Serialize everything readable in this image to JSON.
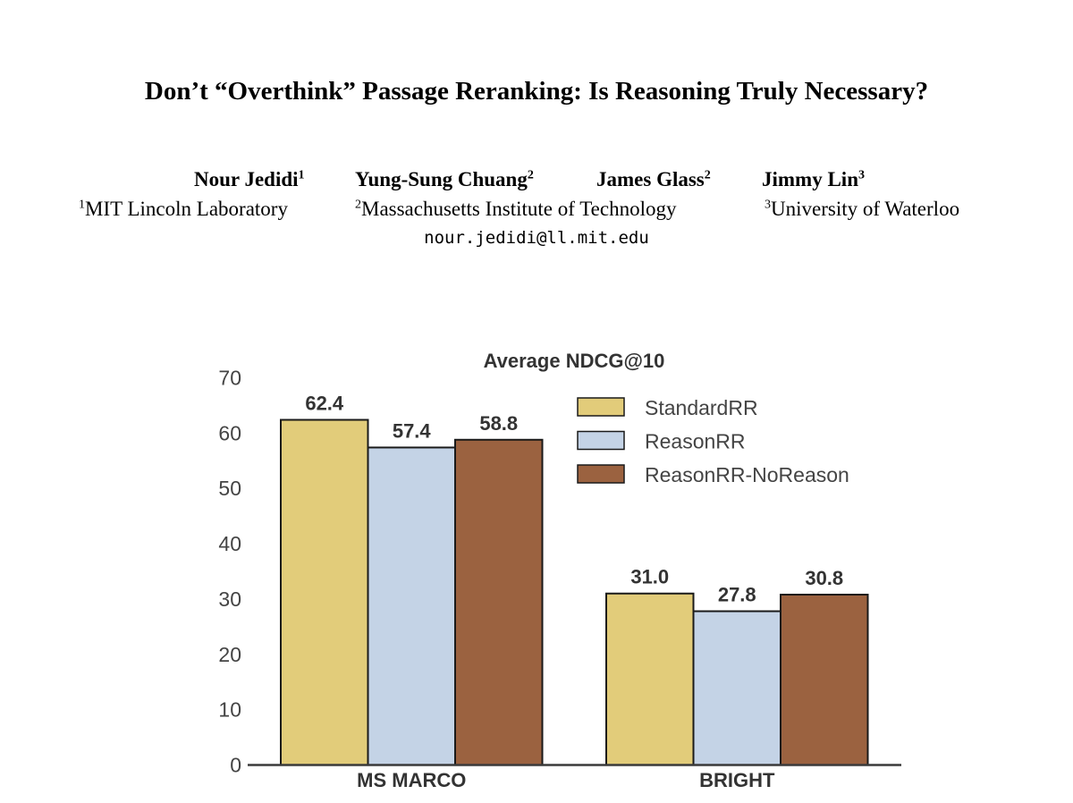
{
  "paper": {
    "title": "Don’t “Overthink” Passage Reranking: Is Reasoning Truly Necessary?",
    "authors": [
      {
        "name": "Nour Jedidi",
        "sup": "1"
      },
      {
        "name": "Yung-Sung Chuang",
        "sup": "2"
      },
      {
        "name": "James Glass",
        "sup": "2"
      },
      {
        "name": "Jimmy Lin",
        "sup": "3"
      }
    ],
    "affiliations": [
      {
        "sup": "1",
        "name": "MIT Lincoln Laboratory"
      },
      {
        "sup": "2",
        "name": "Massachusetts Institute of Technology"
      },
      {
        "sup": "3",
        "name": "University of Waterloo"
      }
    ],
    "email": "nour.jedidi@ll.mit.edu"
  },
  "colors": {
    "StandardRR": "#e2cc7a",
    "ReasonRR": "#c4d3e6",
    "ReasonRR-NoReason": "#9b6240",
    "axis": "#3a3a3a",
    "text": "#333333"
  },
  "chart_data": {
    "type": "bar",
    "title": "Average NDCG@10",
    "categories": [
      "MS MARCO",
      "BRIGHT"
    ],
    "series": [
      {
        "name": "StandardRR",
        "values": [
          62.4,
          31.0
        ],
        "labels": [
          "62.4",
          "31.0"
        ]
      },
      {
        "name": "ReasonRR",
        "values": [
          57.4,
          27.8
        ],
        "labels": [
          "57.4",
          "27.8"
        ]
      },
      {
        "name": "ReasonRR-NoReason",
        "values": [
          58.8,
          30.8
        ],
        "labels": [
          "58.8",
          "30.8"
        ]
      }
    ],
    "yticks": [
      "0",
      "10",
      "20",
      "30",
      "40",
      "50",
      "60",
      "70"
    ],
    "ylim": [
      0,
      70
    ],
    "xlabel": "",
    "ylabel": "",
    "grid": false,
    "legend": "top-right"
  }
}
